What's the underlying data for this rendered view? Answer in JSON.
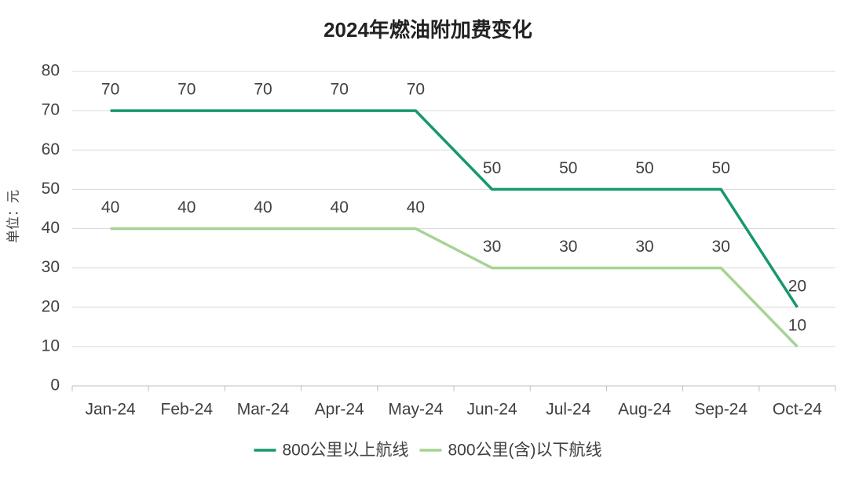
{
  "chart_data": {
    "type": "line",
    "title": "2024年燃油附加费变化",
    "y_label": "单位：元",
    "categories": [
      "Jan-24",
      "Feb-24",
      "Mar-24",
      "Apr-24",
      "May-24",
      "Jun-24",
      "Jul-24",
      "Aug-24",
      "Sep-24",
      "Oct-24"
    ],
    "series": [
      {
        "name": "800公里以上航线",
        "color": "#16996a",
        "values": [
          70,
          70,
          70,
          70,
          70,
          50,
          50,
          50,
          50,
          20
        ]
      },
      {
        "name": "800公里(含)以下航线",
        "color": "#a5d394",
        "values": [
          40,
          40,
          40,
          40,
          40,
          30,
          30,
          30,
          30,
          10
        ]
      }
    ],
    "ylim": [
      0,
      80
    ],
    "yticks": [
      0,
      10,
      20,
      30,
      40,
      50,
      60,
      70,
      80
    ],
    "grid": true,
    "legend": "bottom"
  }
}
